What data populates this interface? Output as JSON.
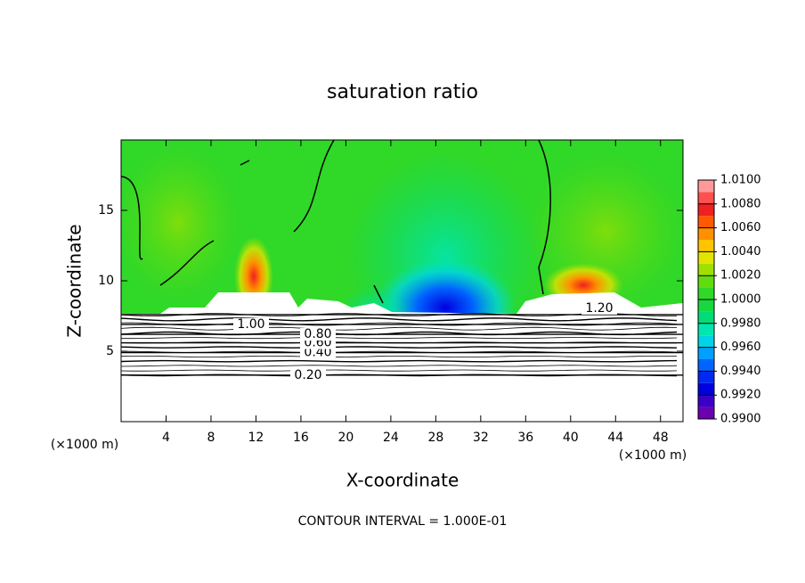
{
  "chart_data": {
    "type": "contour",
    "title": "saturation ratio",
    "xlabel": "X-coordinate",
    "ylabel": "Z-coordinate",
    "x_unit": "(×1000 m)",
    "footer": "CONTOUR INTERVAL = 1.000E-01",
    "xlim": [
      0,
      50
    ],
    "xticks": [
      4,
      8,
      12,
      16,
      20,
      24,
      28,
      32,
      36,
      40,
      44,
      48
    ],
    "ylim": [
      0,
      20
    ],
    "yticks": [
      5,
      10,
      15
    ],
    "contours": [
      {
        "value": 0.2,
        "label": "0.20"
      },
      {
        "value": 0.4,
        "label": "0.40"
      },
      {
        "value": 0.6,
        "label": "0.60"
      },
      {
        "value": 0.8,
        "label": "0.80"
      },
      {
        "value": 1.0,
        "label": "1.00"
      },
      {
        "value": 1.2,
        "label": "1.20"
      }
    ],
    "colorbar": {
      "bins": [
        0.99,
        0.991,
        0.992,
        0.993,
        0.994,
        0.995,
        0.996,
        0.997,
        0.998,
        0.999,
        1.0,
        1.001,
        1.002,
        1.003,
        1.004,
        1.005,
        1.006,
        1.007,
        1.008,
        1.009,
        1.01
      ],
      "colors": [
        "#6a00b0",
        "#3a00c8",
        "#0000e0",
        "#0028f0",
        "#0064ff",
        "#00a0ff",
        "#00d4e6",
        "#00e6b0",
        "#00dc78",
        "#18d840",
        "#30d828",
        "#60dc10",
        "#a0e000",
        "#e0e400",
        "#ffc400",
        "#ff9000",
        "#ff5a00",
        "#f02020",
        "#ff5050",
        "#ff9a9a"
      ],
      "ticks": [
        {
          "value": 0.99,
          "label": "0.9900"
        },
        {
          "value": 0.992,
          "label": "0.9920"
        },
        {
          "value": 0.994,
          "label": "0.9940"
        },
        {
          "value": 0.996,
          "label": "0.9960"
        },
        {
          "value": 0.998,
          "label": "0.9980"
        },
        {
          "value": 1.0,
          "label": "1.0000"
        },
        {
          "value": 1.002,
          "label": "1.0020"
        },
        {
          "value": 1.004,
          "label": "1.0040"
        },
        {
          "value": 1.006,
          "label": "1.0060"
        },
        {
          "value": 1.008,
          "label": "1.0080"
        },
        {
          "value": 1.01,
          "label": "1.0100"
        }
      ]
    }
  }
}
